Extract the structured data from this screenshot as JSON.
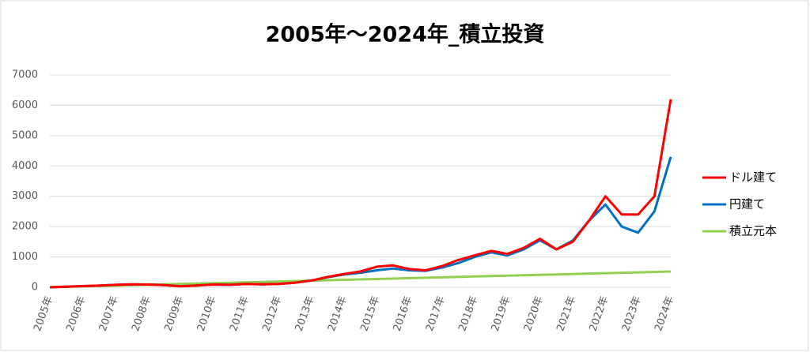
{
  "chart_data": {
    "type": "line",
    "title": "2005年～2024年_積立投資",
    "categories": [
      "2005年",
      null,
      "2006年",
      null,
      "2007年",
      null,
      "2008年",
      null,
      "2009年",
      null,
      "2010年",
      null,
      "2011年",
      null,
      "2012年",
      null,
      "2013年",
      null,
      "2014年",
      null,
      "2015年",
      null,
      "2016年",
      null,
      "2017年",
      null,
      "2018年",
      null,
      "2019年",
      null,
      "2020年",
      null,
      "2021年",
      null,
      "2022年",
      null,
      "2023年",
      null,
      "2024年"
    ],
    "series": [
      {
        "name": "ドル建て",
        "color": "#ff0000",
        "values": [
          0,
          20,
          40,
          55,
          80,
          100,
          90,
          70,
          30,
          60,
          90,
          80,
          110,
          100,
          110,
          150,
          220,
          340,
          440,
          520,
          680,
          720,
          600,
          560,
          700,
          900,
          1050,
          1200,
          1100,
          1300,
          1600,
          1250,
          1500,
          2200,
          3000,
          2400,
          2400,
          3000,
          6200
        ]
      },
      {
        "name": "円建て",
        "color": "#0070c0",
        "values": [
          0,
          20,
          40,
          55,
          80,
          100,
          90,
          70,
          30,
          60,
          90,
          80,
          110,
          100,
          110,
          150,
          220,
          330,
          420,
          480,
          560,
          620,
          560,
          540,
          650,
          800,
          1000,
          1150,
          1050,
          1250,
          1550,
          1250,
          1540,
          2200,
          2730,
          2000,
          1800,
          2500,
          4300
        ]
      },
      {
        "name": "積立元本",
        "color": "#92d050",
        "values": [
          0,
          14,
          27,
          41,
          55,
          68,
          82,
          96,
          109,
          123,
          137,
          151,
          164,
          178,
          192,
          205,
          219,
          233,
          246,
          260,
          274,
          287,
          301,
          315,
          328,
          342,
          356,
          369,
          383,
          397,
          411,
          424,
          438,
          452,
          465,
          479,
          493,
          506,
          520
        ]
      }
    ],
    "ylim": [
      0,
      7000
    ],
    "yticks": [
      0,
      1000,
      2000,
      3000,
      4000,
      5000,
      6000,
      7000
    ],
    "grid": true,
    "legend": "right"
  }
}
